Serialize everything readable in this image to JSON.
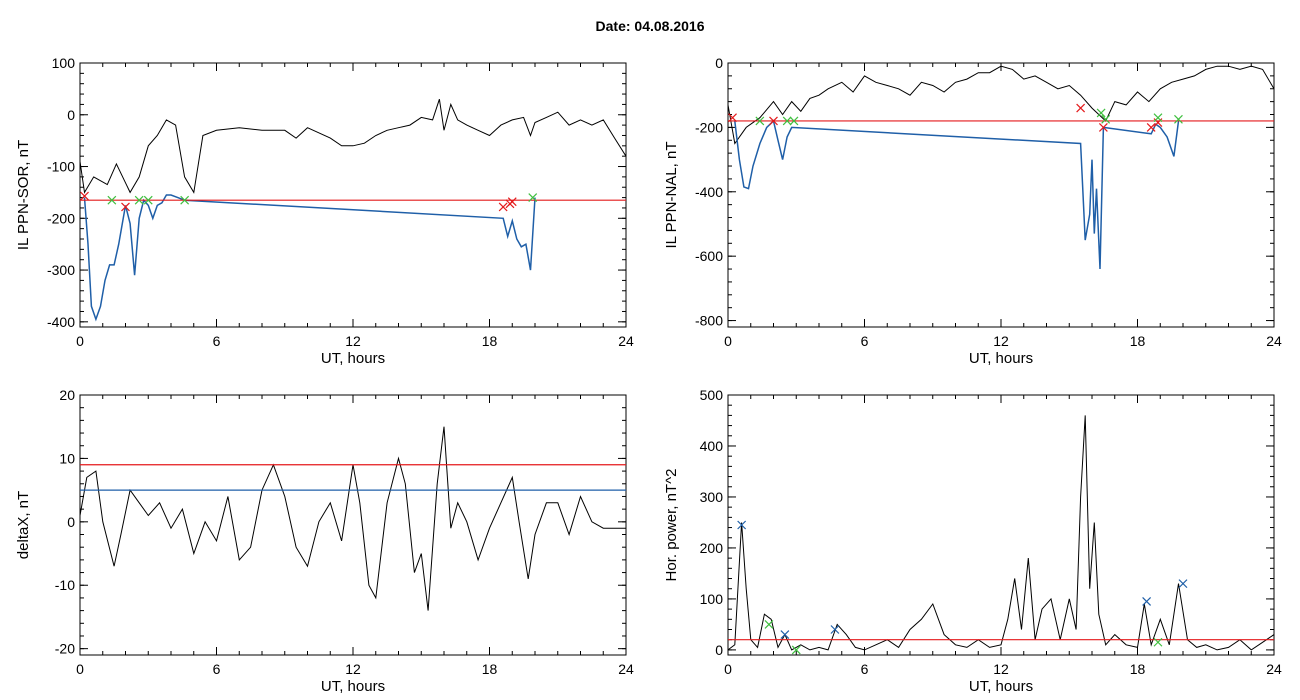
{
  "figure": {
    "title": "Date:  04.08.2016"
  },
  "chart_data": [
    {
      "type": "line",
      "id": "sor",
      "xlabel": "UT, hours",
      "ylabel": "IL PPN-SOR, nT",
      "xlim": [
        0,
        24
      ],
      "ylim": [
        -410,
        100
      ],
      "xticks": [
        0,
        6,
        12,
        18,
        24
      ],
      "yticks": [
        100,
        0,
        -100,
        -200,
        -300,
        -400
      ],
      "threshold": {
        "y": -165,
        "color": "#e41a1c"
      },
      "series": [
        {
          "style": "black",
          "x": [
            0,
            0.2,
            0.6,
            1.2,
            1.6,
            2.2,
            2.6,
            3.0,
            3.4,
            3.8,
            4.2,
            4.6,
            5.0,
            5.4,
            6,
            7,
            8,
            9,
            9.5,
            10,
            11,
            11.5,
            12,
            12.5,
            13,
            13.5,
            14,
            14.5,
            15,
            15.5,
            15.8,
            16.0,
            16.3,
            16.6,
            17,
            17.5,
            18,
            18.5,
            19,
            19.5,
            19.8,
            20,
            20.5,
            21,
            21.5,
            22,
            22.5,
            23,
            23.5,
            24
          ],
          "y": [
            -90,
            -150,
            -120,
            -135,
            -95,
            -150,
            -120,
            -60,
            -40,
            -10,
            -20,
            -120,
            -150,
            -40,
            -30,
            -25,
            -30,
            -30,
            -45,
            -25,
            -45,
            -60,
            -60,
            -55,
            -40,
            -30,
            -25,
            -20,
            -5,
            -10,
            30,
            -30,
            20,
            -10,
            -20,
            -30,
            -40,
            -20,
            -10,
            -5,
            -40,
            -15,
            -5,
            5,
            -20,
            -10,
            -20,
            -10,
            -45,
            -80
          ]
        },
        {
          "style": "blue",
          "x": [
            0.2,
            0.35,
            0.5,
            0.7,
            0.9,
            1.1,
            1.3,
            1.5,
            1.7,
            2.0,
            2.2,
            2.4,
            2.6,
            2.8,
            3.0,
            3.2,
            3.4,
            3.6,
            3.8,
            4.0,
            4.3,
            4.6,
            18.6,
            18.8,
            19.0,
            19.2,
            19.4,
            19.6,
            19.8,
            20.0
          ],
          "y": [
            -160,
            -250,
            -370,
            -395,
            -370,
            -320,
            -290,
            -290,
            -250,
            -175,
            -210,
            -310,
            -200,
            -165,
            -175,
            -200,
            -175,
            -170,
            -155,
            -155,
            -160,
            -165,
            -200,
            -235,
            -205,
            -240,
            -255,
            -250,
            -300,
            -160
          ]
        }
      ],
      "markers_red": {
        "x": [
          0.2,
          2.0,
          18.6,
          18.9,
          19.0
        ],
        "y": [
          -157,
          -178,
          -178,
          -172,
          -168
        ]
      },
      "markers_green": {
        "x": [
          1.4,
          2.6,
          3.0,
          4.6,
          19.9
        ],
        "y": [
          -165,
          -165,
          -165,
          -165,
          -160
        ]
      }
    },
    {
      "type": "line",
      "id": "nal",
      "xlabel": "UT, hours",
      "ylabel": "IL PPN-NAL, nT",
      "xlim": [
        0,
        24
      ],
      "ylim": [
        -820,
        0
      ],
      "xticks": [
        0,
        6,
        12,
        18,
        24
      ],
      "yticks": [
        0,
        -200,
        -400,
        -600,
        -800
      ],
      "threshold": {
        "y": -180,
        "color": "#e41a1c"
      },
      "series": [
        {
          "style": "black",
          "x": [
            0,
            0.3,
            0.8,
            1.4,
            2.0,
            2.4,
            2.8,
            3.2,
            3.6,
            4.0,
            4.4,
            5.0,
            5.5,
            6.0,
            6.5,
            7.0,
            7.5,
            8.0,
            8.5,
            9.0,
            9.5,
            10.0,
            10.5,
            11.0,
            11.5,
            12.0,
            12.5,
            13.0,
            13.5,
            14.0,
            14.5,
            15.0,
            15.5,
            16.0,
            16.6,
            17.0,
            17.5,
            18.0,
            18.5,
            19.0,
            19.5,
            20.0,
            20.5,
            21.0,
            21.5,
            22.0,
            22.5,
            23.0,
            23.5,
            24.0
          ],
          "y": [
            -130,
            -250,
            -200,
            -170,
            -120,
            -160,
            -120,
            -150,
            -110,
            -100,
            -80,
            -60,
            -90,
            -40,
            -60,
            -70,
            -80,
            -100,
            -60,
            -70,
            -90,
            -60,
            -50,
            -30,
            -30,
            -10,
            -20,
            -50,
            -40,
            -60,
            -80,
            -70,
            -100,
            -140,
            -180,
            -120,
            -130,
            -90,
            -120,
            -80,
            -60,
            -50,
            -40,
            -20,
            -10,
            -10,
            -20,
            -10,
            -20,
            -80
          ]
        },
        {
          "style": "blue",
          "x": [
            0.3,
            0.5,
            0.7,
            0.9,
            1.1,
            1.4,
            1.7,
            2.0,
            2.2,
            2.4,
            2.6,
            2.8,
            15.5,
            15.7,
            15.9,
            16.0,
            16.1,
            16.2,
            16.35,
            16.5,
            18.6,
            18.8,
            19.0,
            19.3,
            19.6,
            19.8
          ],
          "y": [
            -180,
            -300,
            -385,
            -390,
            -320,
            -250,
            -200,
            -180,
            -240,
            -300,
            -230,
            -200,
            -250,
            -550,
            -470,
            -300,
            -530,
            -390,
            -640,
            -200,
            -220,
            -190,
            -200,
            -230,
            -290,
            -180
          ]
        }
      ],
      "markers_red": {
        "x": [
          0.2,
          2.0,
          15.5,
          16.5,
          18.6,
          18.9
        ],
        "y": [
          -170,
          -180,
          -140,
          -200,
          -200,
          -185
        ]
      },
      "markers_green": {
        "x": [
          1.4,
          2.6,
          2.9,
          16.4,
          16.6,
          18.9,
          19.8
        ],
        "y": [
          -180,
          -180,
          -180,
          -155,
          -175,
          -170,
          -175
        ]
      }
    },
    {
      "type": "line",
      "id": "deltax",
      "xlabel": "UT, hours",
      "ylabel": "deltaX, nT",
      "xlim": [
        0,
        24
      ],
      "ylim": [
        -21,
        20
      ],
      "xticks": [
        0,
        6,
        12,
        18,
        24
      ],
      "yticks": [
        20,
        10,
        0,
        -10,
        -20
      ],
      "hlines": [
        {
          "y": 9,
          "color": "#e41a1c"
        },
        {
          "y": 5,
          "color": "#1f5fa8"
        }
      ],
      "series": [
        {
          "style": "black",
          "x": [
            0,
            0.3,
            0.7,
            1.0,
            1.5,
            1.8,
            2.2,
            2.6,
            3.0,
            3.5,
            4.0,
            4.5,
            5.0,
            5.5,
            6.0,
            6.5,
            7.0,
            7.5,
            8.0,
            8.5,
            9.0,
            9.5,
            10.0,
            10.5,
            11.0,
            11.5,
            12.0,
            12.3,
            12.7,
            13.0,
            13.5,
            14.0,
            14.3,
            14.7,
            15.0,
            15.3,
            15.7,
            16.0,
            16.3,
            16.6,
            17.0,
            17.5,
            18.0,
            18.5,
            19.0,
            19.3,
            19.7,
            20.0,
            20.5,
            21.0,
            21.5,
            22.0,
            22.5,
            23.0,
            23.5,
            24.0
          ],
          "y": [
            1,
            7,
            8,
            0,
            -7,
            -2,
            5,
            3,
            1,
            3,
            -1,
            2,
            -5,
            0,
            -3,
            4,
            -6,
            -4,
            5,
            9,
            4,
            -4,
            -7,
            0,
            3,
            -3,
            9,
            3,
            -10,
            -12,
            3,
            10,
            6,
            -8,
            -5,
            -14,
            6,
            15,
            -1,
            3,
            0,
            -6,
            -1,
            3,
            7,
            0,
            -9,
            -2,
            3,
            3,
            -2,
            4,
            0,
            -1,
            -1,
            -1
          ]
        }
      ]
    },
    {
      "type": "line",
      "id": "power",
      "xlabel": "UT, hours",
      "ylabel": "Hor. power, nT^2",
      "xlim": [
        0,
        24
      ],
      "ylim": [
        -10,
        500
      ],
      "xticks": [
        0,
        6,
        12,
        18,
        24
      ],
      "yticks": [
        500,
        400,
        300,
        200,
        100,
        0
      ],
      "threshold": {
        "y": 20,
        "color": "#e41a1c"
      },
      "series": [
        {
          "style": "black",
          "x": [
            0,
            0.3,
            0.6,
            0.8,
            1.0,
            1.3,
            1.6,
            1.9,
            2.2,
            2.5,
            2.8,
            3.2,
            3.6,
            4.0,
            4.4,
            4.8,
            5.2,
            5.6,
            6.0,
            6.5,
            7.0,
            7.5,
            8.0,
            8.5,
            9.0,
            9.5,
            10.0,
            10.5,
            11.0,
            11.5,
            12.0,
            12.3,
            12.6,
            12.9,
            13.2,
            13.5,
            13.8,
            14.2,
            14.6,
            15.0,
            15.3,
            15.5,
            15.7,
            15.9,
            16.1,
            16.3,
            16.6,
            17.0,
            17.5,
            18.0,
            18.3,
            18.6,
            19.0,
            19.4,
            19.8,
            20.2,
            20.6,
            21.0,
            21.5,
            22.0,
            22.5,
            23.0,
            23.5,
            24.0
          ],
          "y": [
            0,
            10,
            250,
            120,
            20,
            5,
            70,
            60,
            5,
            30,
            0,
            10,
            0,
            5,
            0,
            50,
            30,
            5,
            0,
            10,
            20,
            5,
            40,
            60,
            90,
            30,
            10,
            5,
            20,
            5,
            10,
            60,
            140,
            40,
            180,
            20,
            80,
            100,
            20,
            100,
            40,
            300,
            460,
            120,
            250,
            70,
            10,
            30,
            10,
            5,
            90,
            10,
            60,
            10,
            130,
            20,
            5,
            10,
            0,
            5,
            20,
            0,
            15,
            30
          ]
        }
      ],
      "markers_blue": {
        "x": [
          0.6,
          2.5,
          4.7,
          18.4,
          20.0
        ],
        "y": [
          245,
          30,
          40,
          95,
          130
        ]
      },
      "markers_green": {
        "x": [
          1.8,
          3.0,
          18.9
        ],
        "y": [
          50,
          0,
          15
        ]
      }
    }
  ]
}
